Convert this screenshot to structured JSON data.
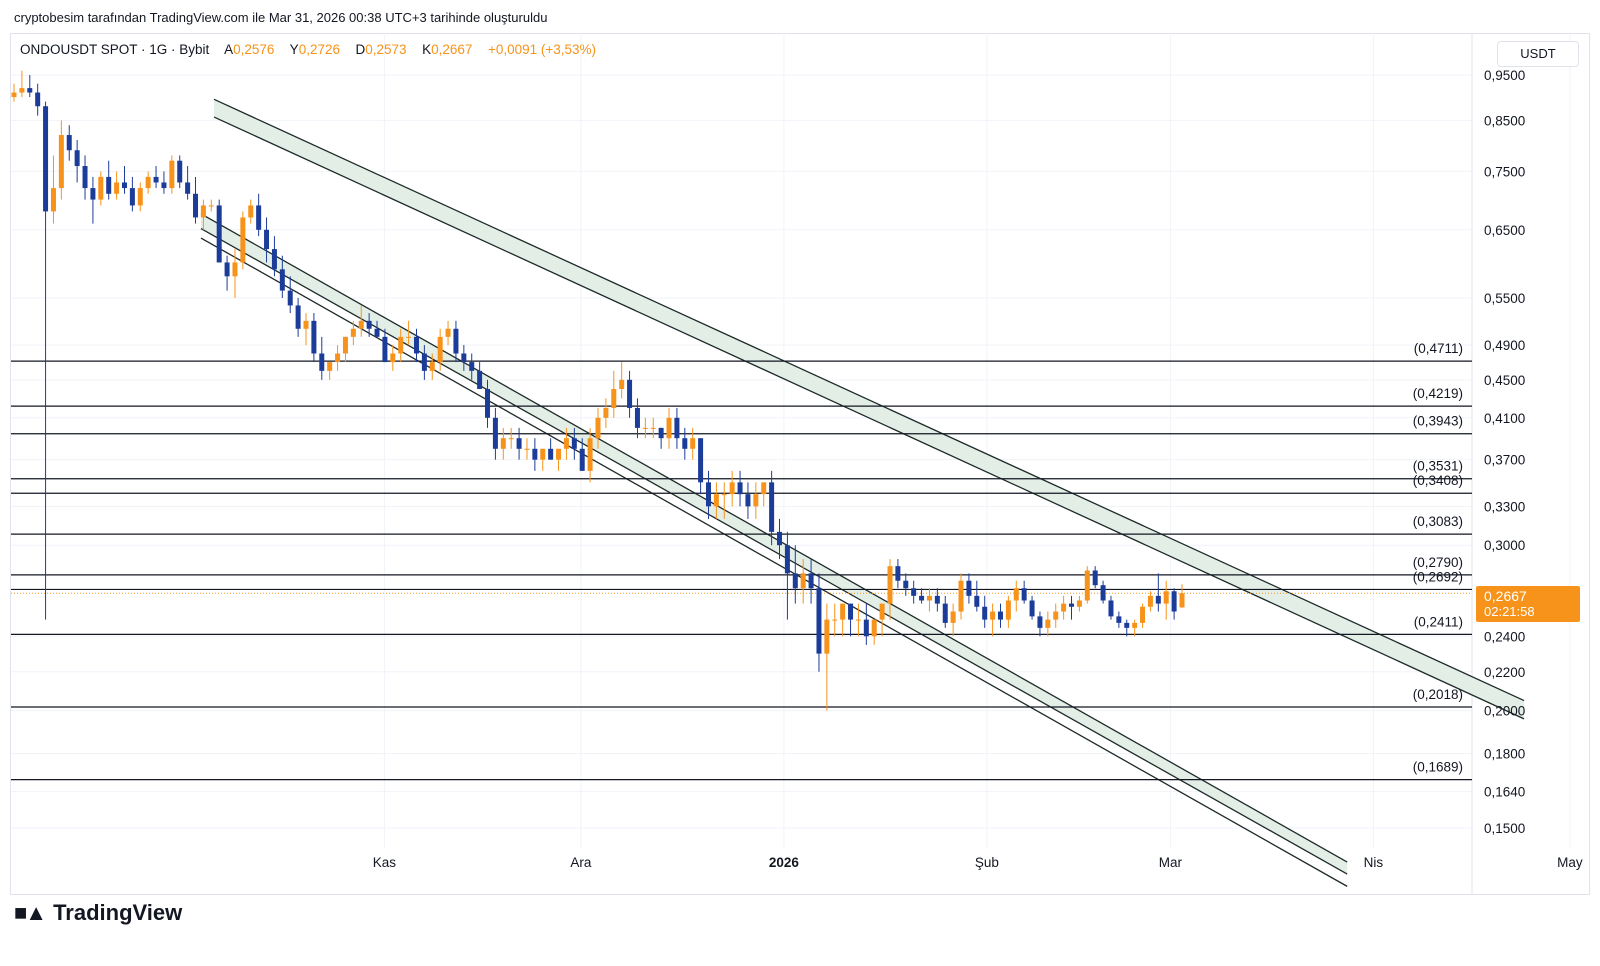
{
  "caption": "cryptobesim tarafından TradingView.com ile Mar 31, 2026 00:38 UTC+3 tarihinde oluşturuldu",
  "header": {
    "symbol": "ONDOUSDT SPOT · 1G · Bybit",
    "open_label": "A",
    "open": "0,2576",
    "high_label": "Y",
    "high": "0,2726",
    "low_label": "D",
    "low": "0,2573",
    "close_label": "K",
    "close": "0,2667",
    "change": "+0,0091 (+3,53%)"
  },
  "currency": "USDT",
  "price_tag": {
    "price": "0,2667",
    "countdown": "02:21:58"
  },
  "logo_text": "TradingView",
  "colors": {
    "up": "#f7931a",
    "down": "#1c3c9a",
    "channel": "#1e2a2a",
    "channel_fill": "#e3efe6",
    "level": "#131722",
    "accent": "#f7931a"
  },
  "chart_data": {
    "type": "candlestick",
    "timeframe": "1G",
    "scale": "log",
    "y_ticks": [
      0.95,
      0.85,
      0.75,
      0.65,
      0.55,
      0.49,
      0.45,
      0.41,
      0.37,
      0.33,
      0.3,
      0.24,
      0.22,
      0.2,
      0.18,
      0.164,
      0.15
    ],
    "y_tick_labels": [
      "0,9500",
      "0,8500",
      "0,7500",
      "0,6500",
      "0,5500",
      "0,4900",
      "0,4500",
      "0,4100",
      "0,3700",
      "0,3300",
      "0,3000",
      "0,2400",
      "0,2200",
      "0,2000",
      "0,1800",
      "0,1640",
      "0,1500"
    ],
    "x_labels": [
      {
        "label": "Kas",
        "day": 57
      },
      {
        "label": "Ara",
        "day": 87
      },
      {
        "label": "2026",
        "day": 118,
        "bold": true
      },
      {
        "label": "Şub",
        "day": 149
      },
      {
        "label": "Mar",
        "day": 177
      },
      {
        "label": "Nis",
        "day": 208
      },
      {
        "label": "May",
        "day": 238
      }
    ],
    "levels": [
      {
        "value": 0.4711,
        "label": "(0,4711)"
      },
      {
        "value": 0.4219,
        "label": "(0,4219)"
      },
      {
        "value": 0.3943,
        "label": "(0,3943)"
      },
      {
        "value": 0.3531,
        "label": "(0,3531)"
      },
      {
        "value": 0.3408,
        "label": "(0,3408)"
      },
      {
        "value": 0.3083,
        "label": "(0,3083)"
      },
      {
        "value": 0.279,
        "label": "(0,2790)"
      },
      {
        "value": 0.2692,
        "label": "(0,2692)"
      },
      {
        "value": 0.2411,
        "label": "(0,2411)"
      },
      {
        "value": 0.2018,
        "label": "(0,2018)"
      },
      {
        "value": 0.1689,
        "label": "(0,1689)"
      }
    ],
    "upper_channel": {
      "outer": [
        {
          "day": 31,
          "price": 0.895
        },
        {
          "day": 231,
          "price": 0.205
        }
      ],
      "inner": [
        {
          "day": 31,
          "price": 0.857
        },
        {
          "day": 231,
          "price": 0.196
        }
      ]
    },
    "lower_channel": {
      "a": [
        {
          "day": 29,
          "price": 0.676
        },
        {
          "day": 204,
          "price": 0.138
        }
      ],
      "b": [
        {
          "day": 29,
          "price": 0.652
        },
        {
          "day": 204,
          "price": 0.134
        }
      ],
      "c": [
        {
          "day": 29,
          "price": 0.637
        },
        {
          "day": 204,
          "price": 0.13
        }
      ]
    },
    "last_price": 0.2667,
    "ohlc": [
      [
        0.9,
        0.93,
        0.89,
        0.91
      ],
      [
        0.91,
        0.96,
        0.9,
        0.92
      ],
      [
        0.92,
        0.95,
        0.9,
        0.91
      ],
      [
        0.91,
        0.93,
        0.86,
        0.88
      ],
      [
        0.88,
        0.89,
        0.25,
        0.68
      ],
      [
        0.68,
        0.78,
        0.66,
        0.72
      ],
      [
        0.72,
        0.85,
        0.7,
        0.82
      ],
      [
        0.82,
        0.84,
        0.77,
        0.79
      ],
      [
        0.79,
        0.81,
        0.73,
        0.76
      ],
      [
        0.76,
        0.78,
        0.7,
        0.72
      ],
      [
        0.72,
        0.74,
        0.66,
        0.7
      ],
      [
        0.7,
        0.75,
        0.69,
        0.74
      ],
      [
        0.74,
        0.77,
        0.7,
        0.71
      ],
      [
        0.71,
        0.75,
        0.7,
        0.73
      ],
      [
        0.73,
        0.76,
        0.71,
        0.72
      ],
      [
        0.72,
        0.74,
        0.68,
        0.69
      ],
      [
        0.69,
        0.73,
        0.68,
        0.72
      ],
      [
        0.72,
        0.75,
        0.71,
        0.74
      ],
      [
        0.74,
        0.76,
        0.72,
        0.73
      ],
      [
        0.73,
        0.75,
        0.71,
        0.72
      ],
      [
        0.72,
        0.78,
        0.71,
        0.77
      ],
      [
        0.77,
        0.78,
        0.72,
        0.73
      ],
      [
        0.73,
        0.76,
        0.7,
        0.71
      ],
      [
        0.71,
        0.74,
        0.66,
        0.67
      ],
      [
        0.67,
        0.7,
        0.65,
        0.69
      ],
      [
        0.69,
        0.7,
        0.68,
        0.69
      ],
      [
        0.69,
        0.7,
        0.6,
        0.6
      ],
      [
        0.6,
        0.61,
        0.56,
        0.58
      ],
      [
        0.58,
        0.62,
        0.55,
        0.6
      ],
      [
        0.6,
        0.68,
        0.59,
        0.67
      ],
      [
        0.67,
        0.7,
        0.66,
        0.69
      ],
      [
        0.69,
        0.71,
        0.64,
        0.65
      ],
      [
        0.65,
        0.67,
        0.6,
        0.62
      ],
      [
        0.62,
        0.64,
        0.58,
        0.59
      ],
      [
        0.59,
        0.61,
        0.55,
        0.56
      ],
      [
        0.56,
        0.58,
        0.53,
        0.54
      ],
      [
        0.54,
        0.55,
        0.5,
        0.51
      ],
      [
        0.51,
        0.53,
        0.49,
        0.52
      ],
      [
        0.52,
        0.53,
        0.47,
        0.48
      ],
      [
        0.48,
        0.5,
        0.45,
        0.46
      ],
      [
        0.46,
        0.47,
        0.45,
        0.47
      ],
      [
        0.47,
        0.49,
        0.46,
        0.48
      ],
      [
        0.48,
        0.5,
        0.47,
        0.5
      ],
      [
        0.5,
        0.52,
        0.49,
        0.51
      ],
      [
        0.51,
        0.54,
        0.5,
        0.52
      ],
      [
        0.52,
        0.53,
        0.5,
        0.51
      ],
      [
        0.51,
        0.52,
        0.5,
        0.5
      ],
      [
        0.5,
        0.51,
        0.47,
        0.47
      ],
      [
        0.47,
        0.49,
        0.46,
        0.48
      ],
      [
        0.48,
        0.51,
        0.47,
        0.5
      ],
      [
        0.5,
        0.52,
        0.49,
        0.5
      ],
      [
        0.5,
        0.51,
        0.47,
        0.48
      ],
      [
        0.48,
        0.49,
        0.45,
        0.46
      ],
      [
        0.46,
        0.48,
        0.45,
        0.47
      ],
      [
        0.47,
        0.51,
        0.46,
        0.5
      ],
      [
        0.5,
        0.52,
        0.49,
        0.51
      ],
      [
        0.51,
        0.52,
        0.47,
        0.48
      ],
      [
        0.48,
        0.49,
        0.46,
        0.47
      ],
      [
        0.47,
        0.48,
        0.45,
        0.46
      ],
      [
        0.46,
        0.47,
        0.44,
        0.44
      ],
      [
        0.44,
        0.45,
        0.4,
        0.41
      ],
      [
        0.41,
        0.42,
        0.37,
        0.38
      ],
      [
        0.38,
        0.4,
        0.37,
        0.39
      ],
      [
        0.39,
        0.4,
        0.38,
        0.39
      ],
      [
        0.39,
        0.4,
        0.37,
        0.38
      ],
      [
        0.38,
        0.39,
        0.37,
        0.38
      ],
      [
        0.38,
        0.39,
        0.36,
        0.37
      ],
      [
        0.37,
        0.38,
        0.36,
        0.38
      ],
      [
        0.38,
        0.39,
        0.37,
        0.37
      ],
      [
        0.37,
        0.38,
        0.36,
        0.38
      ],
      [
        0.38,
        0.4,
        0.37,
        0.39
      ],
      [
        0.39,
        0.4,
        0.37,
        0.38
      ],
      [
        0.38,
        0.39,
        0.36,
        0.36
      ],
      [
        0.36,
        0.4,
        0.35,
        0.39
      ],
      [
        0.39,
        0.42,
        0.38,
        0.41
      ],
      [
        0.41,
        0.43,
        0.4,
        0.42
      ],
      [
        0.42,
        0.46,
        0.41,
        0.44
      ],
      [
        0.44,
        0.47,
        0.43,
        0.45
      ],
      [
        0.45,
        0.46,
        0.41,
        0.42
      ],
      [
        0.42,
        0.43,
        0.39,
        0.4
      ],
      [
        0.4,
        0.41,
        0.39,
        0.4
      ],
      [
        0.4,
        0.41,
        0.39,
        0.4
      ],
      [
        0.4,
        0.4,
        0.38,
        0.39
      ],
      [
        0.39,
        0.42,
        0.38,
        0.41
      ],
      [
        0.41,
        0.42,
        0.38,
        0.39
      ],
      [
        0.39,
        0.4,
        0.37,
        0.38
      ],
      [
        0.38,
        0.4,
        0.37,
        0.39
      ],
      [
        0.39,
        0.39,
        0.34,
        0.35
      ],
      [
        0.35,
        0.36,
        0.32,
        0.33
      ],
      [
        0.33,
        0.35,
        0.32,
        0.34
      ],
      [
        0.34,
        0.35,
        0.32,
        0.34
      ],
      [
        0.34,
        0.36,
        0.33,
        0.35
      ],
      [
        0.35,
        0.36,
        0.33,
        0.34
      ],
      [
        0.34,
        0.35,
        0.32,
        0.33
      ],
      [
        0.33,
        0.35,
        0.32,
        0.34
      ],
      [
        0.34,
        0.35,
        0.33,
        0.35
      ],
      [
        0.35,
        0.36,
        0.3,
        0.31
      ],
      [
        0.31,
        0.32,
        0.29,
        0.3
      ],
      [
        0.3,
        0.31,
        0.25,
        0.28
      ],
      [
        0.28,
        0.3,
        0.26,
        0.27
      ],
      [
        0.27,
        0.29,
        0.26,
        0.28
      ],
      [
        0.28,
        0.29,
        0.26,
        0.27
      ],
      [
        0.27,
        0.28,
        0.22,
        0.23
      ],
      [
        0.23,
        0.26,
        0.2,
        0.25
      ],
      [
        0.25,
        0.26,
        0.24,
        0.25
      ],
      [
        0.25,
        0.26,
        0.24,
        0.26
      ],
      [
        0.26,
        0.26,
        0.24,
        0.25
      ],
      [
        0.25,
        0.26,
        0.24,
        0.25
      ],
      [
        0.25,
        0.26,
        0.235,
        0.24
      ],
      [
        0.24,
        0.25,
        0.235,
        0.25
      ],
      [
        0.25,
        0.26,
        0.24,
        0.26
      ],
      [
        0.26,
        0.29,
        0.25,
        0.285
      ],
      [
        0.285,
        0.29,
        0.27,
        0.275
      ],
      [
        0.275,
        0.28,
        0.265,
        0.27
      ],
      [
        0.27,
        0.275,
        0.26,
        0.265
      ],
      [
        0.265,
        0.27,
        0.26,
        0.262
      ],
      [
        0.262,
        0.27,
        0.255,
        0.265
      ],
      [
        0.265,
        0.27,
        0.255,
        0.26
      ],
      [
        0.26,
        0.265,
        0.245,
        0.248
      ],
      [
        0.248,
        0.26,
        0.24,
        0.255
      ],
      [
        0.255,
        0.28,
        0.25,
        0.275
      ],
      [
        0.275,
        0.28,
        0.26,
        0.265
      ],
      [
        0.265,
        0.275,
        0.255,
        0.258
      ],
      [
        0.258,
        0.265,
        0.245,
        0.25
      ],
      [
        0.25,
        0.26,
        0.24,
        0.255
      ],
      [
        0.255,
        0.26,
        0.245,
        0.25
      ],
      [
        0.25,
        0.265,
        0.245,
        0.262
      ],
      [
        0.262,
        0.275,
        0.255,
        0.27
      ],
      [
        0.27,
        0.275,
        0.26,
        0.262
      ],
      [
        0.262,
        0.265,
        0.25,
        0.252
      ],
      [
        0.252,
        0.255,
        0.24,
        0.245
      ],
      [
        0.245,
        0.255,
        0.24,
        0.25
      ],
      [
        0.25,
        0.26,
        0.245,
        0.255
      ],
      [
        0.255,
        0.265,
        0.25,
        0.26
      ],
      [
        0.26,
        0.265,
        0.25,
        0.258
      ],
      [
        0.258,
        0.265,
        0.255,
        0.262
      ],
      [
        0.262,
        0.285,
        0.26,
        0.282
      ],
      [
        0.282,
        0.285,
        0.27,
        0.272
      ],
      [
        0.272,
        0.275,
        0.26,
        0.262
      ],
      [
        0.262,
        0.265,
        0.25,
        0.252
      ],
      [
        0.252,
        0.255,
        0.245,
        0.248
      ],
      [
        0.248,
        0.25,
        0.24,
        0.245
      ],
      [
        0.245,
        0.25,
        0.24,
        0.248
      ],
      [
        0.248,
        0.26,
        0.245,
        0.258
      ],
      [
        0.258,
        0.268,
        0.255,
        0.265
      ],
      [
        0.265,
        0.28,
        0.255,
        0.26
      ],
      [
        0.26,
        0.275,
        0.25,
        0.268
      ],
      [
        0.268,
        0.27,
        0.25,
        0.255
      ],
      [
        0.2576,
        0.2726,
        0.2573,
        0.2667
      ]
    ]
  }
}
